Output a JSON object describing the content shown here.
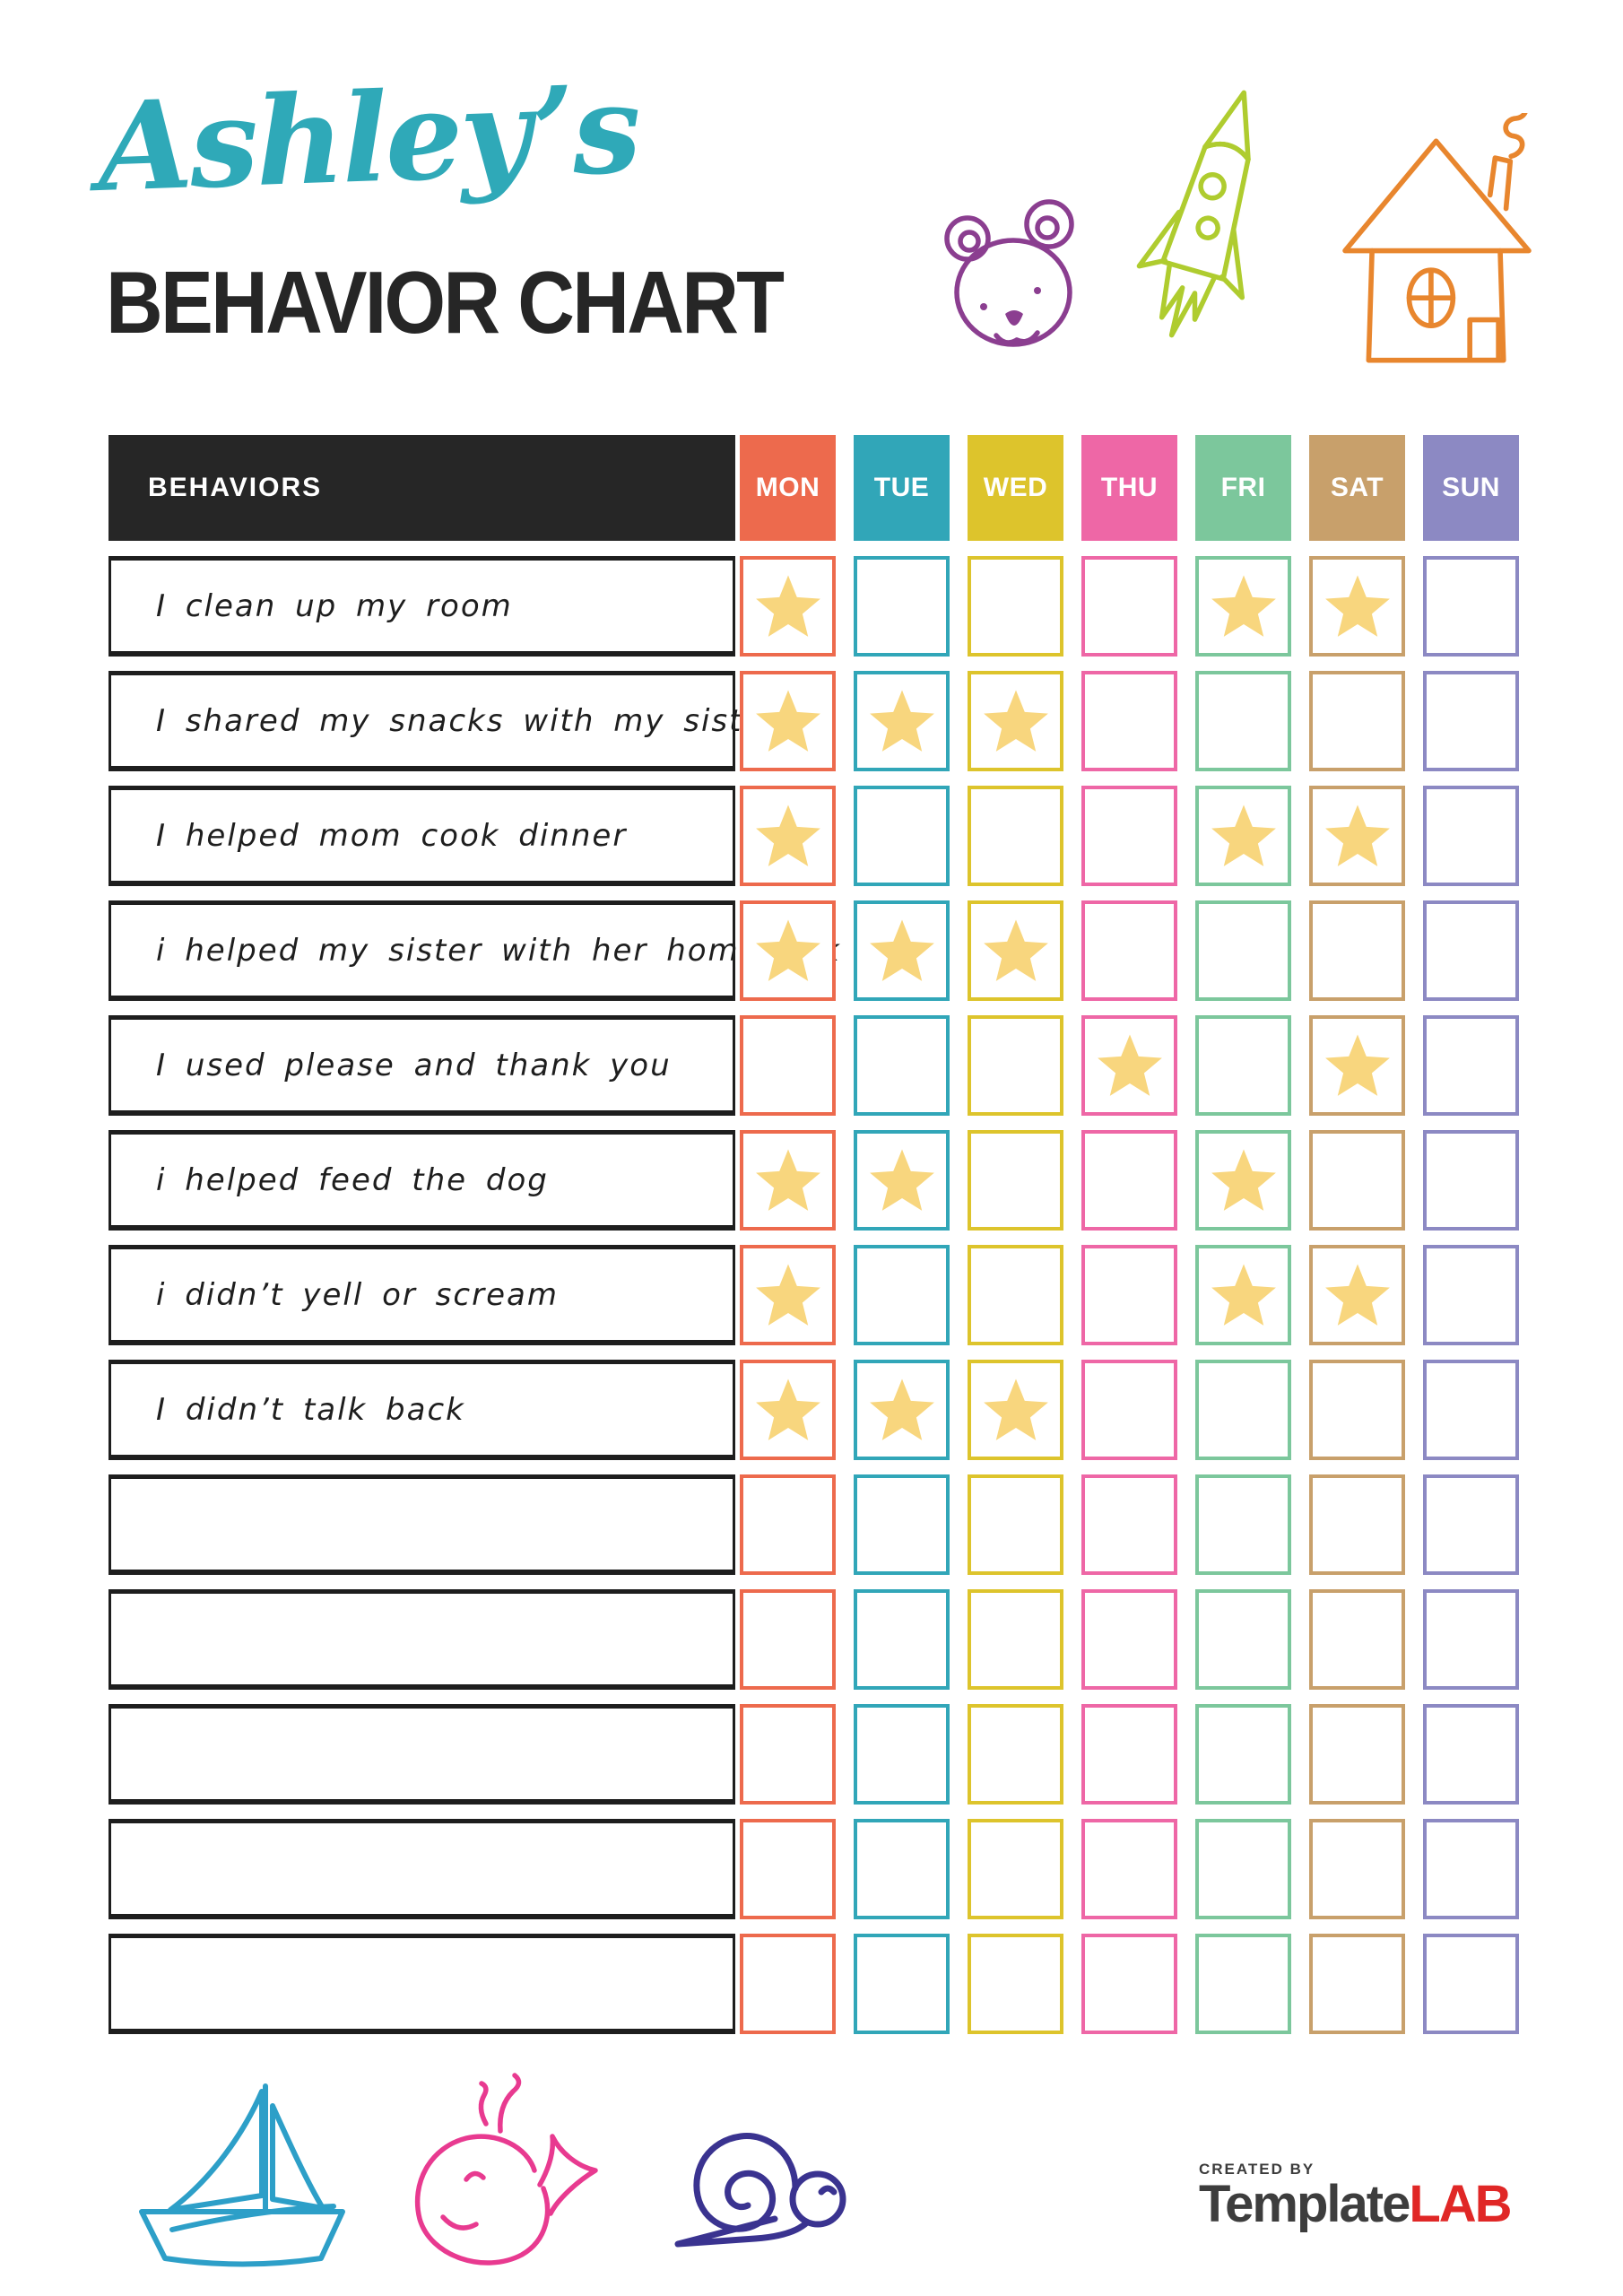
{
  "header": {
    "name": "Ashley’s",
    "title": "BEHAVIOR CHART",
    "name_color": "#2FA9B8",
    "title_color": "#262626"
  },
  "icons": {
    "top": [
      "teddy-bear-icon",
      "rocket-icon",
      "house-icon"
    ],
    "bottom": [
      "sailboat-icon",
      "whale-icon",
      "snail-icon"
    ],
    "colors": {
      "teddy_bear": "#8B3E90",
      "rocket": "#AFCC2F",
      "house": "#E8862E",
      "sailboat": "#2D9FC8",
      "whale": "#E83A90",
      "snail": "#3A3390"
    }
  },
  "table": {
    "behaviors_header": "BEHAVIORS",
    "header_bg": "#262626",
    "ink_color": "#1e1e1e",
    "star_color": "#F8D67E",
    "days": [
      {
        "label": "MON",
        "color": "#ED6A4D"
      },
      {
        "label": "TUE",
        "color": "#31A6B8"
      },
      {
        "label": "WED",
        "color": "#DDC42C"
      },
      {
        "label": "THU",
        "color": "#EE67A6"
      },
      {
        "label": "FRI",
        "color": "#7CC79C"
      },
      {
        "label": "SAT",
        "color": "#C8A06B"
      },
      {
        "label": "SUN",
        "color": "#8C89C3"
      }
    ],
    "rows": [
      {
        "label": "I clean up my room",
        "stars": [
          "MON",
          "FRI",
          "SAT"
        ]
      },
      {
        "label": "I shared my snacks with my sister",
        "stars": [
          "MON",
          "TUE",
          "WED"
        ]
      },
      {
        "label": "I helped mom cook dinner",
        "stars": [
          "MON",
          "FRI",
          "SAT"
        ]
      },
      {
        "label": "i helped my sister with her homework",
        "stars": [
          "MON",
          "TUE",
          "WED"
        ]
      },
      {
        "label": "I used please and thank you",
        "stars": [
          "THU",
          "SAT"
        ]
      },
      {
        "label": "i helped feed the dog",
        "stars": [
          "MON",
          "TUE",
          "FRI"
        ]
      },
      {
        "label": "i didn’t yell or scream",
        "stars": [
          "MON",
          "FRI",
          "SAT"
        ]
      },
      {
        "label": "I didn’t talk back",
        "stars": [
          "MON",
          "TUE",
          "WED"
        ]
      },
      {
        "label": "",
        "stars": []
      },
      {
        "label": "",
        "stars": []
      },
      {
        "label": "",
        "stars": []
      },
      {
        "label": "",
        "stars": []
      },
      {
        "label": "",
        "stars": []
      }
    ]
  },
  "footer": {
    "created_by": "CREATED BY",
    "brand_dark": "Template",
    "brand_red": "LAB"
  }
}
